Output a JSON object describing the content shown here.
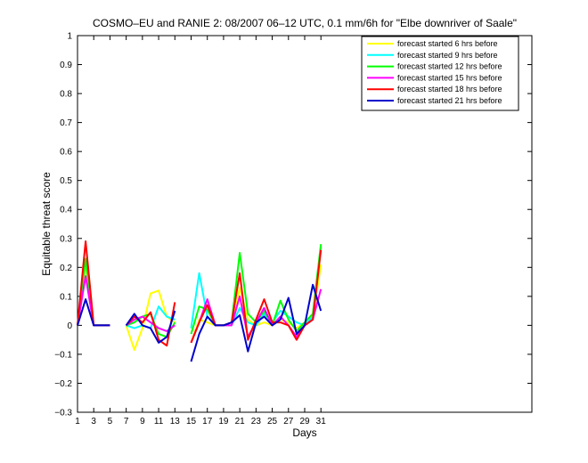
{
  "chart_data": {
    "type": "line",
    "title": "COSMO–EU and RANIE 2: 08/2007 06–12 UTC, 0.1 mm/6h for \"Elbe downriver of Saale\"",
    "xlabel": "Days",
    "ylabel": "Equitable threat score",
    "xlim": [
      1,
      57
    ],
    "ylim": [
      -0.3,
      1
    ],
    "xticks": [
      1,
      3,
      5,
      7,
      9,
      11,
      13,
      15,
      17,
      19,
      21,
      23,
      25,
      27,
      29,
      31
    ],
    "yticks": [
      -0.3,
      -0.2,
      -0.1,
      0,
      0.1,
      0.2,
      0.3,
      0.4,
      0.5,
      0.6,
      0.7,
      0.8,
      0.9,
      1
    ],
    "ytick_labels": [
      "−0.3",
      "−0.2",
      "−0.1",
      "0",
      "0.1",
      "0.2",
      "0.3",
      "0.4",
      "0.5",
      "0.6",
      "0.7",
      "0.8",
      "0.9",
      "1"
    ],
    "legend_position": "top-right",
    "grid": false,
    "series": [
      {
        "name": "forecast started 6 hrs before",
        "color": "#ffff00",
        "x": [
          1,
          2,
          3,
          4,
          5,
          7,
          8,
          9,
          10,
          11,
          12,
          13,
          15,
          16,
          17,
          18,
          19,
          20,
          21,
          22,
          23,
          24,
          25,
          26,
          27,
          28,
          29,
          30,
          31
        ],
        "y": [
          0,
          0.21,
          0,
          0,
          0,
          0,
          -0.085,
          -0.01,
          0.11,
          0.12,
          0.03,
          0.01,
          -0.06,
          0.02,
          0.01,
          0,
          0,
          0,
          0.13,
          0.02,
          0,
          0.01,
          0,
          0.02,
          0.01,
          -0.01,
          0.01,
          0.02,
          0.21
        ]
      },
      {
        "name": "forecast started 9 hrs before",
        "color": "#00ffff",
        "x": [
          1,
          2,
          3,
          4,
          5,
          7,
          8,
          9,
          10,
          11,
          12,
          13,
          15,
          16,
          17,
          18,
          19,
          20,
          21,
          22,
          23,
          24,
          25,
          26,
          27,
          28,
          29,
          30,
          31
        ],
        "y": [
          0,
          0.17,
          0,
          0,
          0,
          0,
          -0.01,
          0,
          -0.01,
          0.065,
          0.03,
          0.02,
          -0.01,
          0.18,
          0.03,
          0,
          0,
          0,
          0.06,
          0.01,
          0,
          0.04,
          0.01,
          0.05,
          0.03,
          0.01,
          0,
          0.03,
          0.27
        ]
      },
      {
        "name": "forecast started 12 hrs before",
        "color": "#00ff00",
        "x": [
          1,
          2,
          3,
          4,
          5,
          7,
          8,
          9,
          10,
          11,
          12,
          13,
          15,
          16,
          17,
          18,
          19,
          20,
          21,
          22,
          23,
          24,
          25,
          26,
          27,
          28,
          29,
          30,
          31
        ],
        "y": [
          0,
          0.23,
          0,
          0,
          0,
          0,
          0.01,
          0.03,
          0.04,
          -0.03,
          -0.04,
          0.01,
          -0.03,
          0.065,
          0.055,
          0,
          0,
          0.01,
          0.25,
          0.04,
          0.01,
          0.05,
          0,
          0.085,
          0.02,
          -0.02,
          0.01,
          0.04,
          0.28
        ]
      },
      {
        "name": "forecast started 15 hrs before",
        "color": "#ff00ff",
        "x": [
          1,
          2,
          3,
          4,
          5,
          7,
          8,
          9,
          10,
          11,
          12,
          13,
          15,
          16,
          17,
          18,
          19,
          20,
          21,
          22,
          23,
          24,
          25,
          26,
          27,
          28,
          29,
          30,
          31
        ],
        "y": [
          0,
          0.17,
          0,
          0,
          0,
          0,
          0.02,
          0.03,
          0.01,
          -0.01,
          -0.02,
          0,
          -0.06,
          0.01,
          0.09,
          0,
          0,
          0,
          0.1,
          -0.04,
          0.01,
          0.06,
          0,
          0.03,
          0,
          -0.04,
          0,
          0.02,
          0.125
        ]
      },
      {
        "name": "forecast started 18 hrs before",
        "color": "#ff0000",
        "x": [
          1,
          2,
          3,
          4,
          5,
          7,
          8,
          9,
          10,
          11,
          12,
          13,
          15,
          16,
          17,
          18,
          19,
          20,
          21,
          22,
          23,
          24,
          25,
          26,
          27,
          28,
          29,
          30,
          31
        ],
        "y": [
          0,
          0.29,
          0,
          0,
          0,
          0,
          0.03,
          0.01,
          0.045,
          -0.05,
          -0.07,
          0.08,
          -0.06,
          0.01,
          0.07,
          0,
          0,
          0.01,
          0.18,
          -0.05,
          0.02,
          0.09,
          0.01,
          0.01,
          0,
          -0.05,
          0,
          0.02,
          0.26
        ]
      },
      {
        "name": "forecast started 21 hrs before",
        "color": "#0000cc",
        "x": [
          1,
          2,
          3,
          4,
          5,
          7,
          8,
          9,
          10,
          11,
          12,
          13,
          15,
          16,
          17,
          18,
          19,
          20,
          21,
          22,
          23,
          24,
          25,
          26,
          27,
          28,
          29,
          30,
          31
        ],
        "y": [
          0,
          0.09,
          0,
          0,
          0,
          0,
          0.04,
          0,
          -0.01,
          -0.06,
          -0.04,
          0.05,
          -0.125,
          -0.03,
          0.03,
          0,
          0,
          0.01,
          0.035,
          -0.09,
          0.01,
          0.03,
          0,
          0.02,
          0.095,
          -0.03,
          0,
          0.14,
          0.05
        ]
      }
    ]
  }
}
